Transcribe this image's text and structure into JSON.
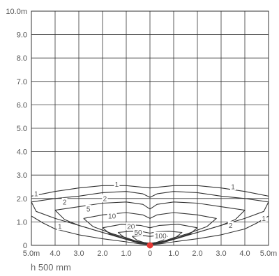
{
  "chart_data": {
    "type": "line",
    "title": "",
    "xlabel": "",
    "ylabel": "",
    "xlim": [
      -5,
      5
    ],
    "ylim": [
      0,
      10
    ],
    "grid": true,
    "x_tick_labels": [
      "5.0m",
      "4.0",
      "3.0",
      "2.0",
      "1.0",
      "0",
      "1.0",
      "2.0",
      "3.0",
      "4.0",
      "5.0m"
    ],
    "y_tick_labels": [
      "0",
      "1.0",
      "2.0",
      "3.0",
      "4.0",
      "5.0",
      "6.0",
      "7.0",
      "8.0",
      "9.0",
      "10.0m"
    ],
    "source_point": {
      "x": 0,
      "y": 0,
      "color": "#e53935"
    },
    "line_color": "#333333",
    "series": [
      {
        "name": "1",
        "points": [
          [
            -5,
            2.1
          ],
          [
            -4,
            2.3
          ],
          [
            -3,
            2.45
          ],
          [
            -2,
            2.55
          ],
          [
            -1,
            2.55
          ],
          [
            0,
            2.45
          ],
          [
            1,
            2.55
          ],
          [
            2,
            2.55
          ],
          [
            3,
            2.45
          ],
          [
            4,
            2.3
          ],
          [
            5,
            2.1
          ]
        ]
      },
      {
        "name": "1",
        "points": [
          [
            -5,
            1.25
          ],
          [
            -4.5,
            0.95
          ],
          [
            -4,
            0.7
          ],
          [
            -3,
            0.45
          ],
          [
            -2,
            0.28
          ],
          [
            -1,
            0.15
          ],
          [
            -0.4,
            0.06
          ],
          [
            0,
            0.02
          ],
          [
            0.4,
            0.06
          ],
          [
            1,
            0.15
          ],
          [
            2,
            0.28
          ],
          [
            3,
            0.45
          ],
          [
            4,
            0.7
          ],
          [
            4.5,
            0.95
          ],
          [
            5,
            1.25
          ]
        ]
      },
      {
        "name": "2",
        "points": [
          [
            -5,
            1.85
          ],
          [
            -4,
            2.0
          ],
          [
            -3,
            2.1
          ],
          [
            -2,
            2.25
          ],
          [
            -1,
            2.3
          ],
          [
            -0.3,
            2.2
          ],
          [
            0,
            2.05
          ],
          [
            0.3,
            2.2
          ],
          [
            1,
            2.3
          ],
          [
            2,
            2.25
          ],
          [
            3,
            2.1
          ],
          [
            4,
            2.0
          ],
          [
            5,
            1.85
          ],
          [
            4.8,
            1.45
          ],
          [
            4,
            1.15
          ],
          [
            3,
            0.85
          ],
          [
            2,
            0.55
          ],
          [
            1,
            0.25
          ],
          [
            0.4,
            0.08
          ],
          [
            0,
            0.03
          ],
          [
            -0.4,
            0.08
          ],
          [
            -1,
            0.25
          ],
          [
            -2,
            0.55
          ],
          [
            -3,
            0.85
          ],
          [
            -4,
            1.15
          ],
          [
            -4.8,
            1.45
          ],
          [
            -5,
            1.85
          ]
        ]
      },
      {
        "name": "5",
        "points": [
          [
            -4.0,
            1.5
          ],
          [
            -3,
            1.65
          ],
          [
            -2,
            1.8
          ],
          [
            -1,
            1.85
          ],
          [
            -0.3,
            1.75
          ],
          [
            0,
            1.55
          ],
          [
            0.3,
            1.75
          ],
          [
            1,
            1.85
          ],
          [
            2,
            1.8
          ],
          [
            3,
            1.65
          ],
          [
            4.0,
            1.5
          ],
          [
            3.6,
            1.1
          ],
          [
            3,
            0.85
          ],
          [
            2,
            0.55
          ],
          [
            1,
            0.28
          ],
          [
            0.4,
            0.1
          ],
          [
            0,
            0.05
          ],
          [
            -0.4,
            0.1
          ],
          [
            -1,
            0.28
          ],
          [
            -2,
            0.55
          ],
          [
            -3,
            0.85
          ],
          [
            -3.6,
            1.1
          ],
          [
            -4.0,
            1.5
          ]
        ]
      },
      {
        "name": "10",
        "points": [
          [
            -2.8,
            1.15
          ],
          [
            -2,
            1.3
          ],
          [
            -1,
            1.4
          ],
          [
            -0.3,
            1.3
          ],
          [
            0,
            1.15
          ],
          [
            0.3,
            1.3
          ],
          [
            1,
            1.4
          ],
          [
            2,
            1.3
          ],
          [
            2.8,
            1.15
          ],
          [
            2.4,
            0.8
          ],
          [
            1.6,
            0.5
          ],
          [
            1,
            0.32
          ],
          [
            0.4,
            0.12
          ],
          [
            0,
            0.06
          ],
          [
            -0.4,
            0.12
          ],
          [
            -1,
            0.32
          ],
          [
            -1.6,
            0.5
          ],
          [
            -2.4,
            0.8
          ],
          [
            -2.8,
            1.15
          ]
        ]
      },
      {
        "name": "20",
        "points": [
          [
            -2.0,
            0.75
          ],
          [
            -1.2,
            0.9
          ],
          [
            -0.4,
            0.85
          ],
          [
            0,
            0.75
          ],
          [
            0.4,
            0.85
          ],
          [
            1.2,
            0.9
          ],
          [
            2.0,
            0.75
          ],
          [
            1.7,
            0.5
          ],
          [
            1.1,
            0.3
          ],
          [
            0.5,
            0.14
          ],
          [
            0,
            0.08
          ],
          [
            -0.5,
            0.14
          ],
          [
            -1.1,
            0.3
          ],
          [
            -1.7,
            0.5
          ],
          [
            -2.0,
            0.75
          ]
        ]
      },
      {
        "name": "50",
        "points": [
          [
            -1.35,
            0.55
          ],
          [
            -0.8,
            0.6
          ],
          [
            -0.3,
            0.58
          ],
          [
            0,
            0.52
          ],
          [
            0.3,
            0.58
          ],
          [
            0.8,
            0.6
          ],
          [
            1.35,
            0.55
          ],
          [
            1.1,
            0.35
          ],
          [
            0.6,
            0.18
          ],
          [
            0,
            0.08
          ],
          [
            -0.6,
            0.18
          ],
          [
            -1.1,
            0.35
          ],
          [
            -1.35,
            0.55
          ]
        ]
      },
      {
        "name": "100",
        "points": [
          [
            -0.75,
            0.38
          ],
          [
            -0.3,
            0.42
          ],
          [
            0,
            0.38
          ],
          [
            0.3,
            0.42
          ],
          [
            0.75,
            0.38
          ],
          [
            0.55,
            0.22
          ],
          [
            0.25,
            0.12
          ],
          [
            0,
            0.09
          ],
          [
            -0.25,
            0.12
          ],
          [
            -0.55,
            0.22
          ],
          [
            -0.75,
            0.38
          ]
        ]
      }
    ],
    "contour_labels": [
      {
        "text": "1",
        "x": -4.8,
        "y": 2.2
      },
      {
        "text": "1",
        "x": -1.4,
        "y": 2.6
      },
      {
        "text": "1",
        "x": 3.5,
        "y": 2.5
      },
      {
        "text": "1",
        "x": -3.8,
        "y": 0.8
      },
      {
        "text": "1",
        "x": 4.8,
        "y": 1.15
      },
      {
        "text": "2",
        "x": -1.9,
        "y": 2.0
      },
      {
        "text": "2",
        "x": -3.6,
        "y": 1.85
      },
      {
        "text": "2",
        "x": 3.4,
        "y": 0.85
      },
      {
        "text": "5",
        "x": -2.6,
        "y": 1.55
      },
      {
        "text": "10",
        "x": -1.6,
        "y": 1.25
      },
      {
        "text": "20",
        "x": -0.8,
        "y": 0.8
      },
      {
        "text": "50",
        "x": -0.5,
        "y": 0.55
      },
      {
        "text": "100",
        "x": 0.45,
        "y": 0.4
      }
    ]
  },
  "note": "h 500 mm"
}
